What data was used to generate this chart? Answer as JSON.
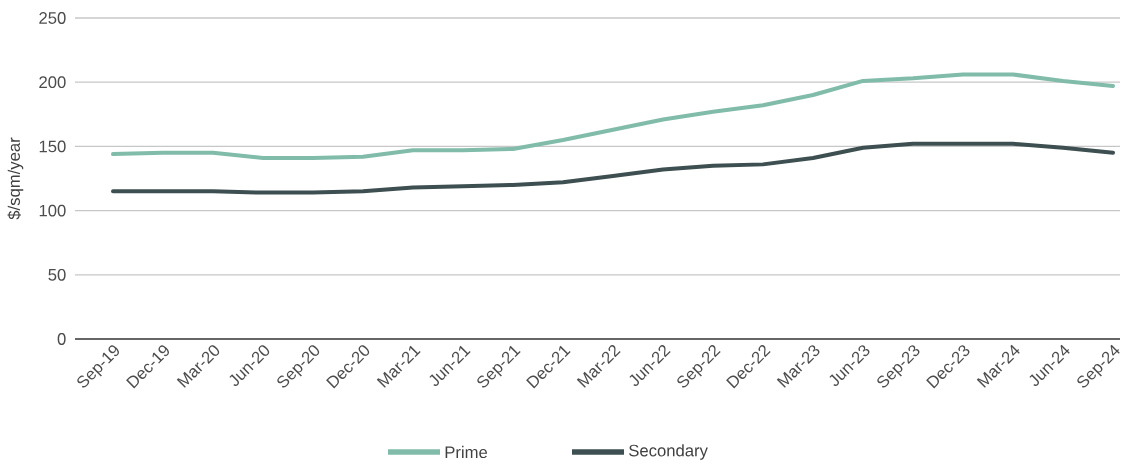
{
  "chart_data": {
    "type": "line",
    "ylabel": "$/sqm/year",
    "categories": [
      "Sep-19",
      "Dec-19",
      "Mar-20",
      "Jun-20",
      "Sep-20",
      "Dec-20",
      "Mar-21",
      "Jun-21",
      "Sep-21",
      "Dec-21",
      "Mar-22",
      "Jun-22",
      "Sep-22",
      "Dec-22",
      "Mar-23",
      "Jun-23",
      "Sep-23",
      "Dec-23",
      "Mar-24",
      "Jun-24",
      "Sep-24"
    ],
    "series": [
      {
        "name": "Prime",
        "color": "#80bca9",
        "values": [
          144,
          145,
          145,
          141,
          141,
          142,
          147,
          147,
          148,
          155,
          163,
          171,
          177,
          182,
          190,
          201,
          203,
          206,
          206,
          201,
          197
        ]
      },
      {
        "name": "Secondary",
        "color": "#3d4f50",
        "values": [
          115,
          115,
          115,
          114,
          114,
          115,
          118,
          119,
          120,
          122,
          127,
          132,
          135,
          136,
          141,
          149,
          152,
          152,
          152,
          149,
          145
        ]
      }
    ],
    "ylim": [
      0,
      250
    ],
    "yticks": [
      0,
      50,
      100,
      150,
      200,
      250
    ],
    "grid": "y",
    "legend": "bottom",
    "marker": "none",
    "line_style": "solid"
  }
}
